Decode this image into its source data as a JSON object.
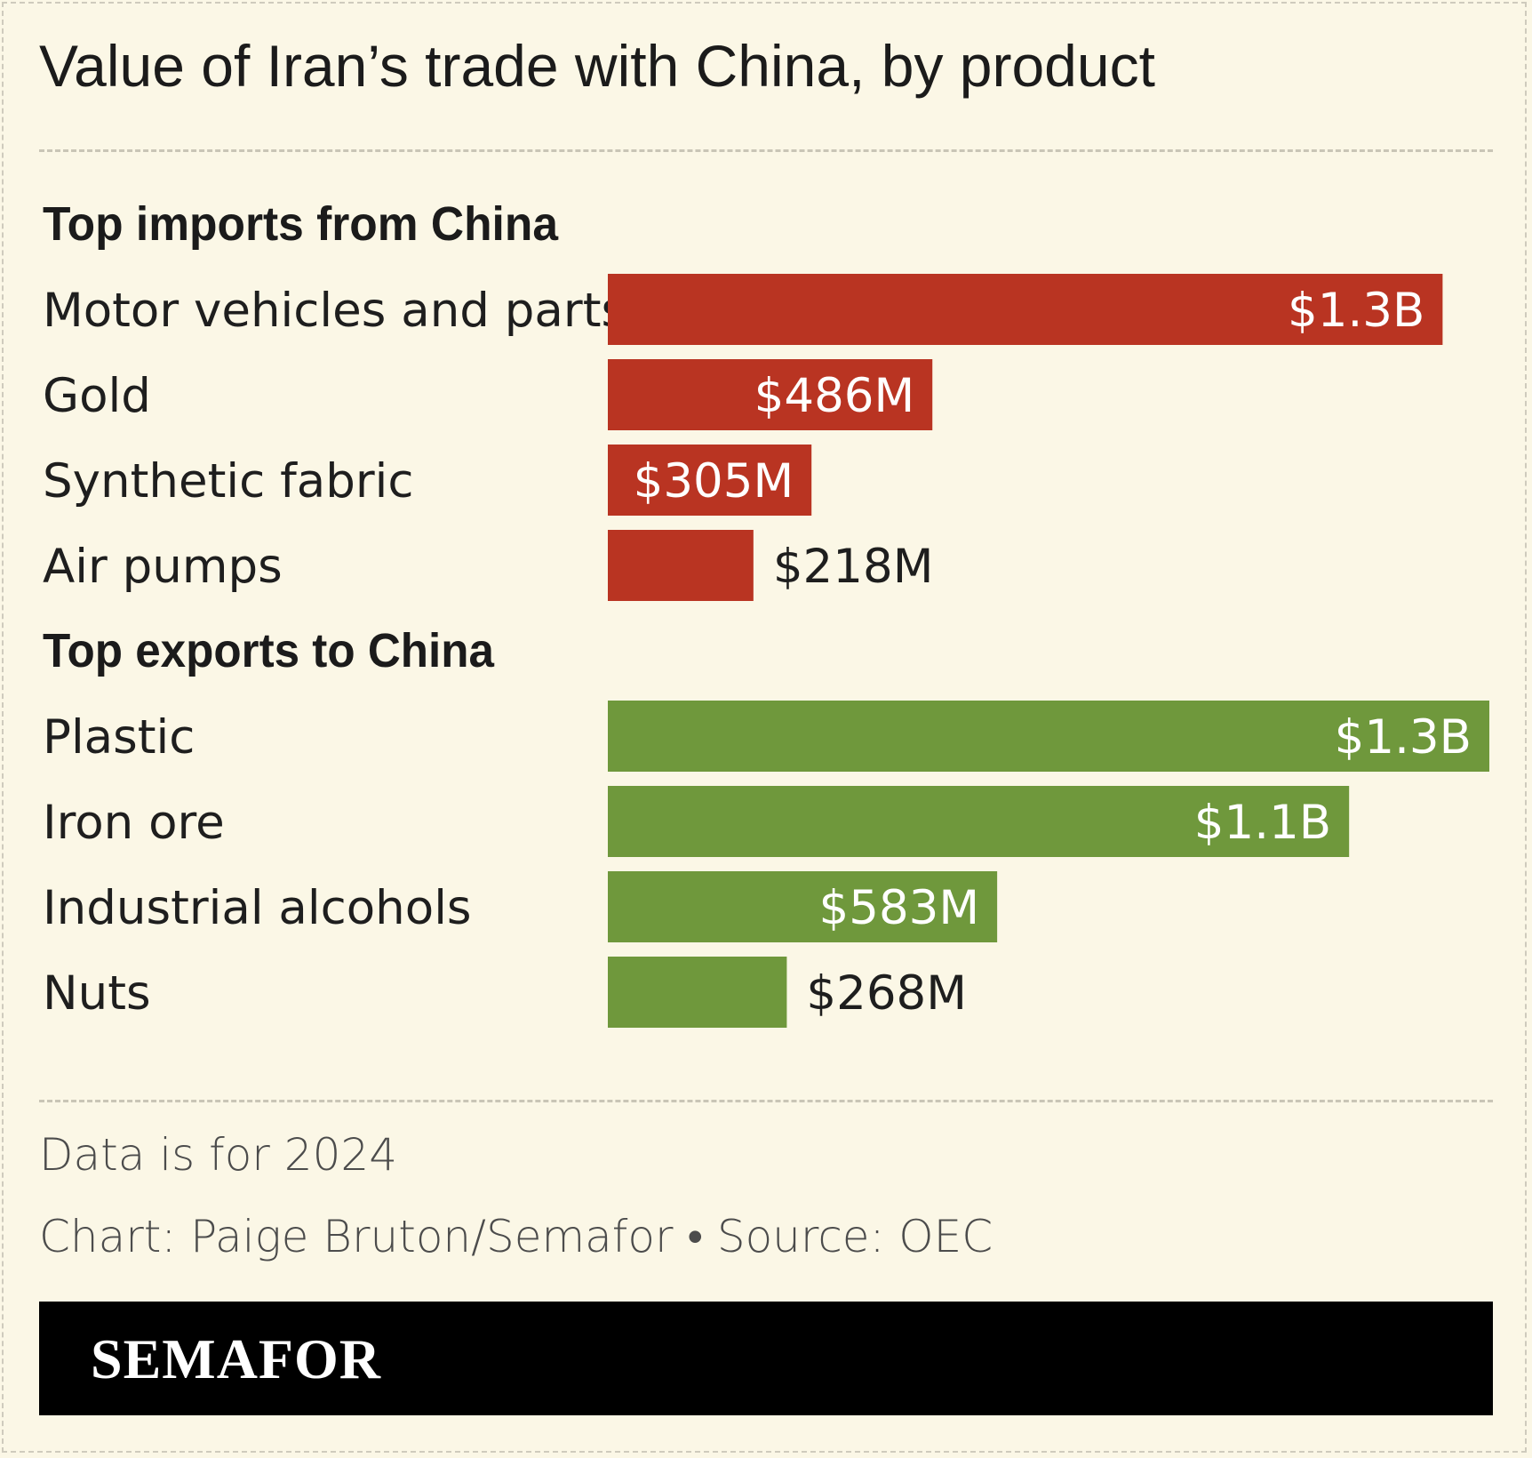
{
  "title": "Value of Iran’s trade with China, by product",
  "chart_data": {
    "type": "bar",
    "orientation": "horizontal",
    "groups": [
      {
        "name": "Top imports from China",
        "color": "#b93422",
        "categories": [
          "Motor vehicles and parts",
          "Gold",
          "Synthetic fabric",
          "Air pumps"
        ],
        "values": [
          1250,
          486,
          305,
          218
        ],
        "labels": [
          "$1.3B",
          "$486M",
          "$305M",
          "$218M"
        ]
      },
      {
        "name": "Top exports to China",
        "color": "#6f983c",
        "categories": [
          "Plastic",
          "Iron ore",
          "Industrial alcohols",
          "Nuts"
        ],
        "values": [
          1320,
          1110,
          583,
          268
        ],
        "labels": [
          "$1.3B",
          "$1.1B",
          "$583M",
          "$268M"
        ]
      }
    ],
    "unit": "USD millions",
    "xlim": [
      0,
      1320
    ],
    "grid": false
  },
  "notes": {
    "data_year": "Data is for 2024",
    "credit": "Chart: Paige Bruton/Semafor • Source: OEC"
  },
  "brand": "SEMAFOR"
}
